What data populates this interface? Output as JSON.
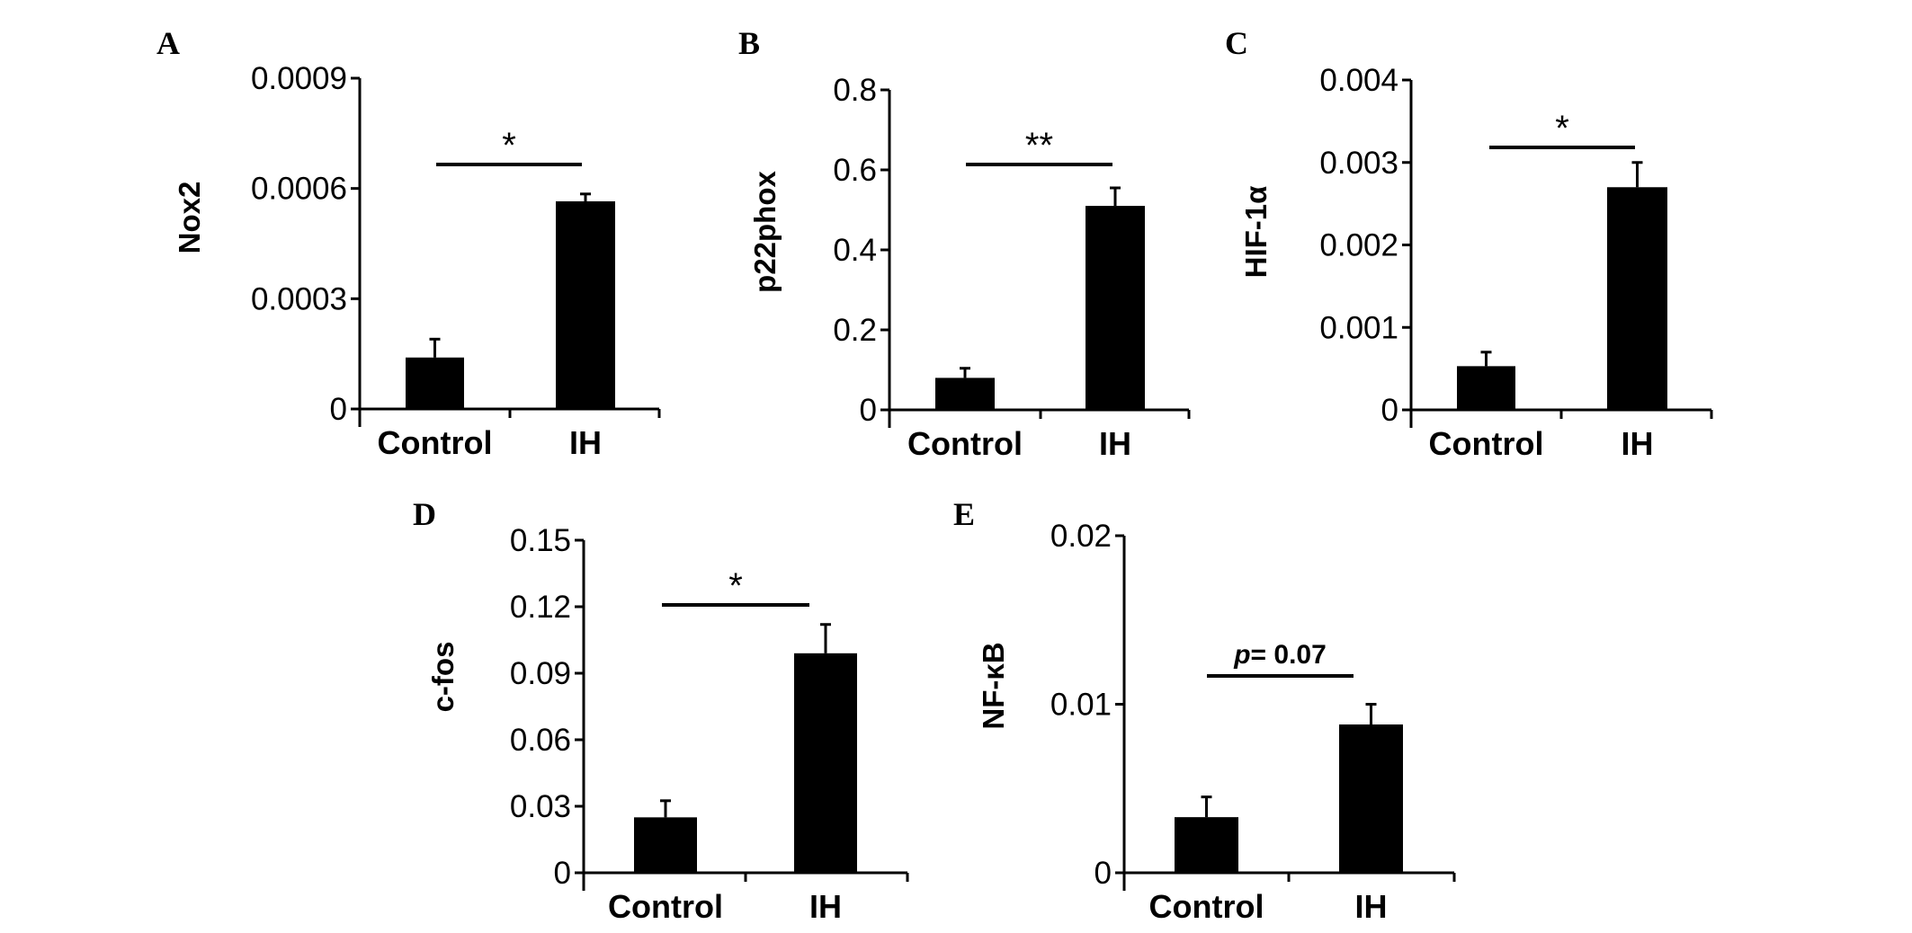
{
  "chart_data": [
    {
      "panel": "A",
      "type": "bar",
      "ylabel": "Nox2",
      "categories": [
        "Control",
        "IH"
      ],
      "values": [
        0.00014,
        0.000565
      ],
      "errors_upper": [
        0.00019,
        0.000585
      ],
      "ylim": [
        0,
        0.0009
      ],
      "yticks": [
        "0",
        "0.0003",
        "0.0006",
        "0.0009"
      ],
      "yticks_values": [
        0,
        0.0003,
        0.0006,
        0.0009
      ],
      "significance": "*",
      "bar_color": "#000000"
    },
    {
      "panel": "B",
      "type": "bar",
      "ylabel": "p22phox",
      "categories": [
        "Control",
        "IH"
      ],
      "values": [
        0.08,
        0.51
      ],
      "errors_upper": [
        0.104,
        0.555
      ],
      "ylim": [
        0,
        0.8
      ],
      "yticks": [
        "0",
        "0.2",
        "0.4",
        "0.6",
        "0.8"
      ],
      "yticks_values": [
        0,
        0.2,
        0.4,
        0.6,
        0.8
      ],
      "significance": "**",
      "bar_color": "#000000"
    },
    {
      "panel": "C",
      "type": "bar",
      "ylabel": "HIF-1α",
      "categories": [
        "Control",
        "IH"
      ],
      "values": [
        0.00053,
        0.0027
      ],
      "errors_upper": [
        0.0007,
        0.003
      ],
      "ylim": [
        0,
        0.004
      ],
      "yticks": [
        "0",
        "0.001",
        "0.002",
        "0.003",
        "0.004"
      ],
      "yticks_values": [
        0,
        0.001,
        0.002,
        0.003,
        0.004
      ],
      "significance": "*",
      "bar_color": "#000000"
    },
    {
      "panel": "D",
      "type": "bar",
      "ylabel": "c-fos",
      "categories": [
        "Control",
        "IH"
      ],
      "values": [
        0.025,
        0.099
      ],
      "errors_upper": [
        0.0325,
        0.112
      ],
      "ylim": [
        0,
        0.15
      ],
      "yticks": [
        "0",
        "0.03",
        "0.06",
        "0.09",
        "0.12",
        "0.15"
      ],
      "yticks_values": [
        0,
        0.03,
        0.06,
        0.09,
        0.12,
        0.15
      ],
      "significance": "*",
      "bar_color": "#000000"
    },
    {
      "panel": "E",
      "type": "bar",
      "ylabel": "NF-κB",
      "categories": [
        "Control",
        "IH"
      ],
      "values": [
        0.0033,
        0.0088
      ],
      "errors_upper": [
        0.0045,
        0.01
      ],
      "ylim": [
        0,
        0.02
      ],
      "yticks": [
        "0",
        "0.01",
        "0.02"
      ],
      "yticks_values": [
        0,
        0.01,
        0.02
      ],
      "significance_p": "p",
      "significance": "= 0.07",
      "bar_color": "#000000"
    }
  ]
}
